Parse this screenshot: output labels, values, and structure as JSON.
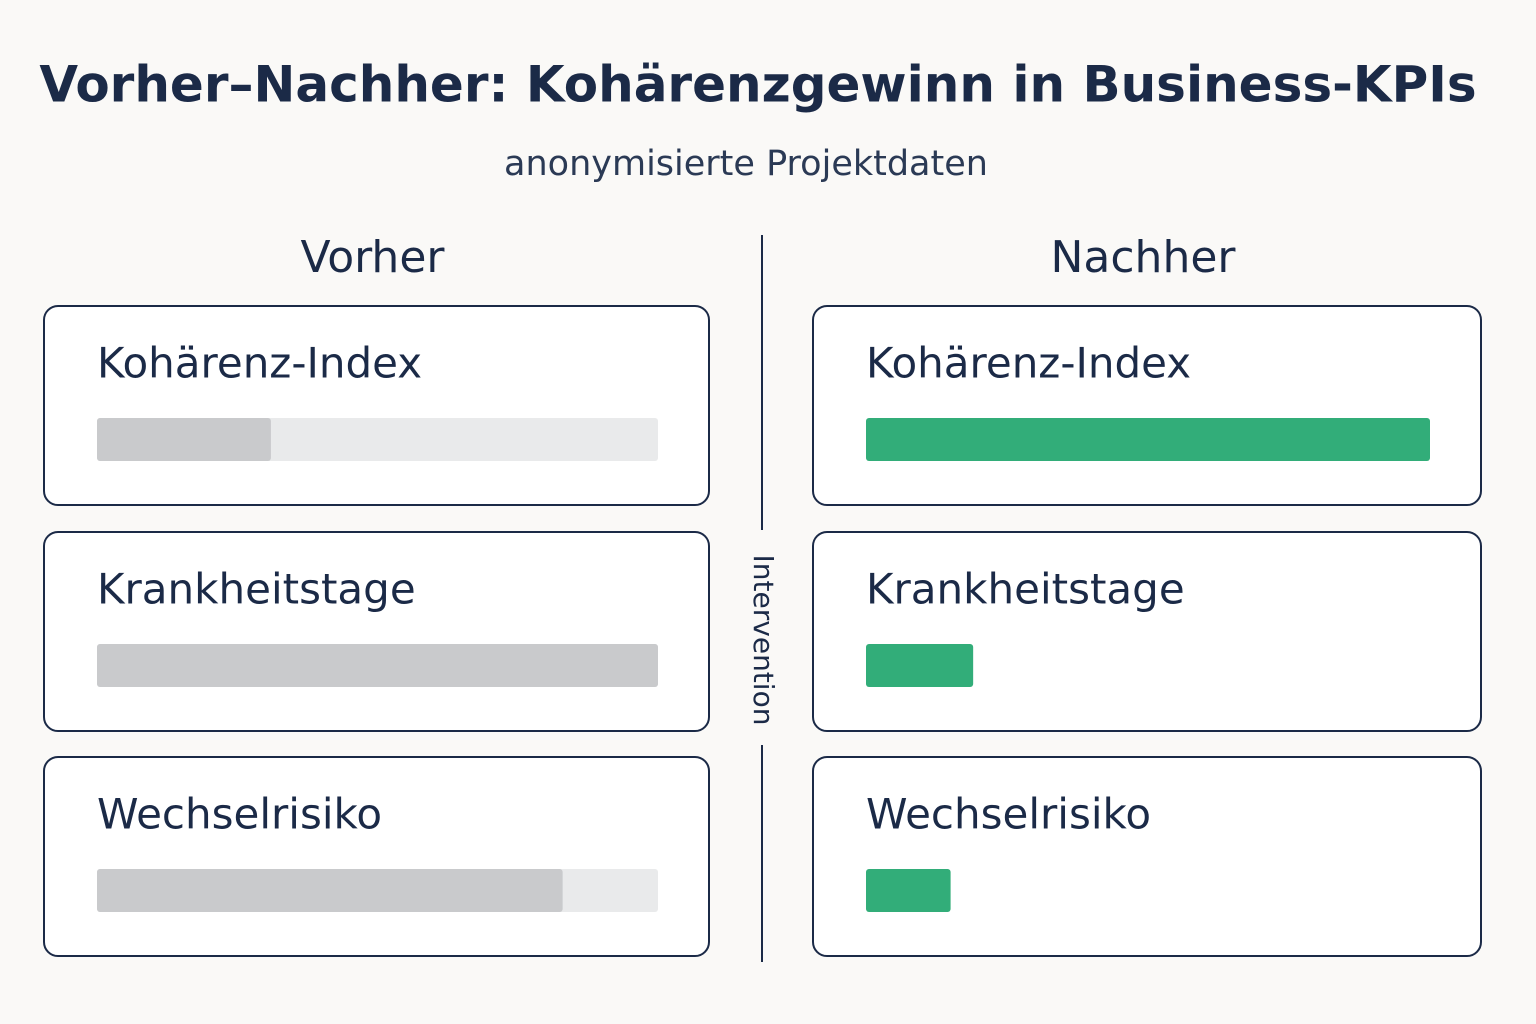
{
  "chart_data": {
    "type": "bar",
    "title": "Vorher–Nachher: Kohärenzgewinn in Business-KPIs",
    "subtitle": "anonymisierte Projektdaten",
    "annotation": "Intervention",
    "categories": [
      "Kohärenz-Index",
      "Krankheitstage",
      "Wechselrisiko"
    ],
    "series": [
      {
        "name": "Vorher",
        "color": "#c9cacc",
        "values": [
          31,
          100,
          83
        ]
      },
      {
        "name": "Nachher",
        "color": "#32ad79",
        "values": [
          100,
          19,
          15
        ]
      }
    ],
    "xlim": [
      0,
      100
    ]
  }
}
